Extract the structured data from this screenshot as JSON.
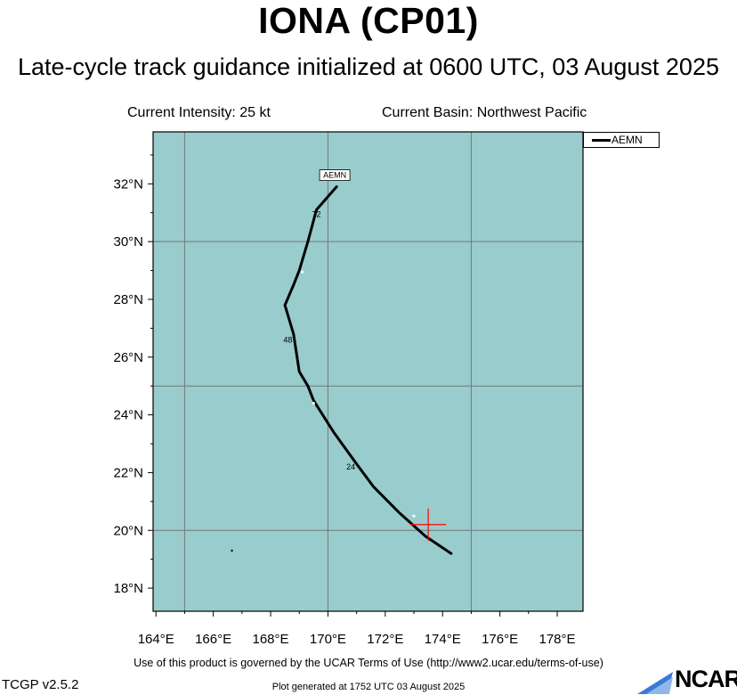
{
  "header": {
    "title": "IONA (CP01)",
    "subtitle": "Late-cycle track guidance initialized at 0600 UTC, 03 August 2025",
    "current_intensity": "Current Intensity: 25 kt",
    "current_basin": "Current Basin: Northwest Pacific"
  },
  "legend": {
    "entries": [
      "AEMN"
    ]
  },
  "map": {
    "lon_ticks": [
      "164°E",
      "166°E",
      "168°E",
      "170°E",
      "172°E",
      "174°E",
      "176°E",
      "178°E"
    ],
    "lat_ticks": [
      "18°N",
      "20°N",
      "22°N",
      "24°N",
      "26°N",
      "28°N",
      "30°N",
      "32°N"
    ],
    "ocean_color": "#99cccc",
    "grid_color": "#777777",
    "track_color": "#000000",
    "current_position_color": "#ff0000",
    "current_position": {
      "lon": 173.5,
      "lat": 20.2
    },
    "track_label": "AEMN",
    "forecast_hour_labels": [
      "24",
      "48",
      "72"
    ]
  },
  "chart_data": {
    "type": "map-track",
    "title": "IONA (CP01)",
    "subtitle": "Late-cycle track guidance initialized at 0600 UTC, 03 August 2025",
    "xlim": [
      163.9,
      178.9
    ],
    "ylim": [
      17.2,
      33.8
    ],
    "series": [
      {
        "name": "AEMN",
        "lon": [
          174.3,
          173.4,
          172.5,
          171.6,
          171.0,
          170.2,
          169.5,
          169.3,
          169.0,
          168.8,
          168.5,
          168.8,
          169.0,
          169.3,
          169.6,
          170.3
        ],
        "lat": [
          19.2,
          19.8,
          20.6,
          21.5,
          22.3,
          23.4,
          24.5,
          25.0,
          25.5,
          26.8,
          27.8,
          28.5,
          29.0,
          30.0,
          31.1,
          31.9
        ]
      }
    ],
    "time_labels": [
      {
        "text": "24",
        "lon": 170.8,
        "lat": 22.1
      },
      {
        "text": "48",
        "lon": 168.6,
        "lat": 26.5
      },
      {
        "text": "72",
        "lon": 169.6,
        "lat": 30.85
      }
    ],
    "current_position": {
      "lon": 173.5,
      "lat": 20.2
    }
  },
  "footer": {
    "terms": "Use of this product is governed by the UCAR Terms of Use (http://www2.ucar.edu/terms-of-use)",
    "version": "TCGP v2.5.2",
    "generated": "Plot generated at 1752 UTC   03 August 2025",
    "logo_text": "NCAR"
  }
}
